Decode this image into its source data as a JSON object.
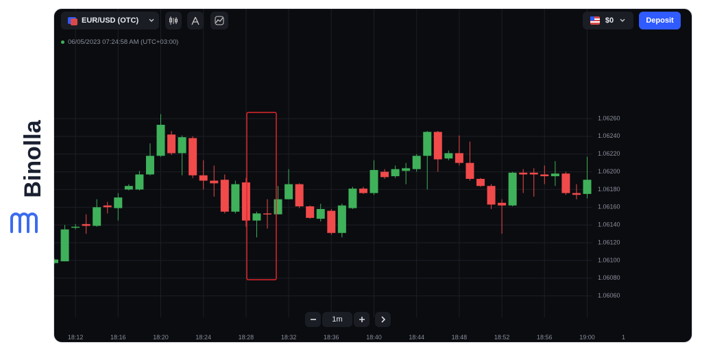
{
  "brand": {
    "name": "Binolla"
  },
  "header": {
    "asset": "EUR/USD (OTC)",
    "balance": "$0",
    "deposit": "Deposit",
    "timestamp": "06/05/2023 07:24:58 AM (UTC+03:00)"
  },
  "controls": {
    "timeframe": "1m"
  },
  "chart_data": {
    "type": "candlestick",
    "categories": [
      null,
      null,
      "18:12",
      null,
      null,
      null,
      "18:16",
      null,
      null,
      null,
      "18:20",
      null,
      null,
      null,
      "18:24",
      null,
      null,
      null,
      "18:28",
      null,
      null,
      null,
      "18:32",
      null,
      null,
      null,
      "18:36",
      null,
      null,
      null,
      "18:40",
      null,
      null,
      null,
      "18:44",
      null,
      null,
      null,
      "18:48",
      null,
      null,
      null,
      "18:52",
      null,
      null,
      null,
      "18:56",
      null,
      null,
      null,
      "19:00"
    ],
    "open": [
      1.06097,
      1.06099,
      1.06137,
      1.06141,
      1.06139,
      1.06162,
      1.06159,
      1.0618,
      1.0618,
      1.06197,
      1.06218,
      1.06242,
      1.06221,
      1.06238,
      1.06196,
      1.0619,
      1.06191,
      1.06155,
      1.06188,
      1.06145,
      1.06153,
      1.06152,
      1.06169,
      1.06186,
      1.06161,
      1.06147,
      1.06156,
      1.06131,
      1.06159,
      1.06181,
      1.06176,
      1.062,
      1.06195,
      1.06201,
      1.06203,
      1.06218,
      1.06245,
      1.06215,
      1.06221,
      1.0621,
      1.06192,
      1.06184,
      1.06165,
      1.06162,
      1.06199,
      1.06199,
      1.06197,
      1.06195,
      1.06198,
      1.06176,
      1.06175
    ],
    "high": [
      1.06102,
      1.0614,
      1.06141,
      1.06152,
      1.06169,
      1.06166,
      1.06176,
      1.06186,
      1.06201,
      1.06232,
      1.06265,
      1.06246,
      1.06241,
      1.0624,
      1.06213,
      1.06207,
      1.06197,
      1.0619,
      1.06193,
      1.06155,
      1.06169,
      1.06184,
      1.06203,
      1.06187,
      1.06162,
      1.06164,
      1.06158,
      1.06164,
      1.06183,
      1.06183,
      1.06213,
      1.06203,
      1.06207,
      1.0621,
      1.0622,
      1.06246,
      1.06246,
      1.06224,
      1.06241,
      1.06234,
      1.06193,
      1.06186,
      1.06169,
      1.062,
      1.06203,
      1.06204,
      1.06207,
      1.06212,
      1.062,
      1.06186,
      1.06217
    ],
    "low": [
      1.06096,
      1.06099,
      1.06135,
      1.0613,
      1.06138,
      1.06153,
      1.06145,
      1.06179,
      1.06179,
      1.06196,
      1.06217,
      1.06219,
      1.06196,
      1.06193,
      1.0618,
      1.06172,
      1.06153,
      1.06153,
      1.06138,
      1.06126,
      1.06136,
      1.06152,
      1.06169,
      1.06159,
      1.06147,
      1.06144,
      1.06129,
      1.06126,
      1.06158,
      1.06175,
      1.06174,
      1.06192,
      1.06193,
      1.06186,
      1.062,
      1.0618,
      1.062,
      1.06213,
      1.06207,
      1.0619,
      1.06183,
      1.06158,
      1.0613,
      1.06161,
      1.06176,
      1.06172,
      1.06186,
      1.06184,
      1.06174,
      1.06169,
      1.0617
    ],
    "close": [
      1.06101,
      1.06135,
      1.06138,
      1.06139,
      1.0616,
      1.0616,
      1.06171,
      1.06184,
      1.06197,
      1.06218,
      1.06253,
      1.06221,
      1.06239,
      1.06196,
      1.0619,
      1.06187,
      1.06155,
      1.06186,
      1.06145,
      1.06153,
      1.06152,
      1.06169,
      1.06186,
      1.06161,
      1.06148,
      1.06158,
      1.06131,
      1.06162,
      1.06181,
      1.06176,
      1.06202,
      1.06194,
      1.06203,
      1.06204,
      1.06218,
      1.06245,
      1.06214,
      1.06221,
      1.0621,
      1.06192,
      1.06184,
      1.06163,
      1.06162,
      1.06199,
      1.06197,
      1.06197,
      1.06195,
      1.06198,
      1.06176,
      1.06174,
      1.06191
    ],
    "up_color": "#3fb15a",
    "down_color": "#f04a4a",
    "ylim": [
      1.06045,
      1.06335
    ],
    "yticks": [
      {
        "value": 1.0606,
        "label": "1.06060"
      },
      {
        "value": 1.0608,
        "label": "1.06080"
      },
      {
        "value": 1.061,
        "label": "1.06100"
      },
      {
        "value": 1.0612,
        "label": "1.06120"
      },
      {
        "value": 1.0614,
        "label": "1.06140"
      },
      {
        "value": 1.0616,
        "label": "1.06160"
      },
      {
        "value": 1.0618,
        "label": "1.06180"
      },
      {
        "value": 1.062,
        "label": "1.06200"
      },
      {
        "value": 1.0622,
        "label": "1.06220"
      },
      {
        "value": 1.0624,
        "label": "1.06240"
      },
      {
        "value": 1.0626,
        "label": "1.06260"
      }
    ],
    "x_edge_label": "1",
    "grid": true
  }
}
